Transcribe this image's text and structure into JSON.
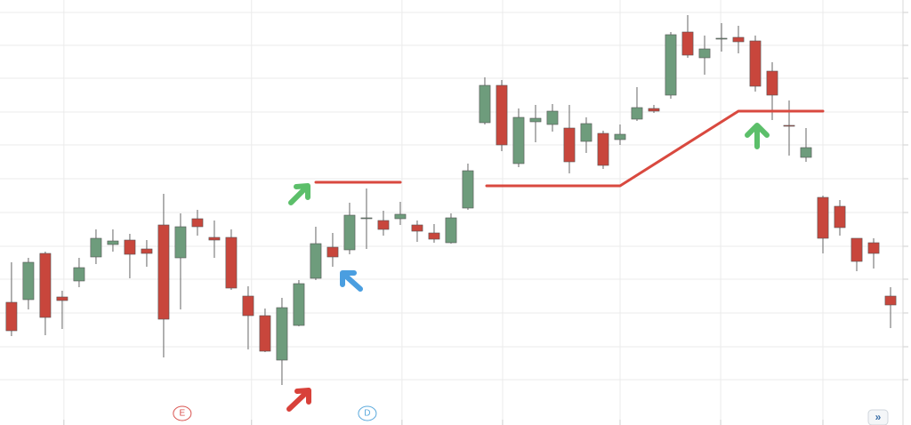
{
  "chart_data": {
    "type": "candlestick",
    "x": [
      0,
      1,
      2,
      3,
      4,
      5,
      6,
      7,
      8,
      9,
      10,
      11,
      12,
      13,
      14,
      15,
      16,
      17,
      18,
      19,
      20,
      21,
      22,
      23,
      24,
      25,
      26,
      27,
      28,
      29,
      30,
      31,
      32,
      33,
      34,
      35,
      36,
      37,
      38,
      39,
      40,
      41,
      42,
      43,
      44,
      45,
      46,
      47,
      48,
      49,
      50,
      51,
      52
    ],
    "open": [
      138,
      141,
      193,
      144,
      162,
      189,
      203,
      208,
      198,
      225,
      188,
      232,
      211,
      211,
      145,
      123,
      73,
      112,
      165,
      200,
      197,
      232,
      230,
      232,
      225,
      216,
      205,
      244,
      340,
      382,
      294,
      341,
      338,
      334,
      319,
      328,
      321,
      344,
      356,
      371,
      442,
      413,
      434,
      436,
      432,
      398,
      337,
      301,
      256,
      246,
      210,
      205,
      145
    ],
    "high": [
      183,
      188,
      195,
      151,
      188,
      220,
      220,
      215,
      208,
      260,
      238,
      242,
      230,
      220,
      156,
      131,
      143,
      163,
      223,
      216,
      250,
      266,
      241,
      251,
      230,
      226,
      238,
      294,
      391,
      388,
      356,
      360,
      361,
      360,
      346,
      331,
      338,
      380,
      360,
      442,
      461,
      438,
      452,
      449,
      438,
      408,
      365,
      334,
      258,
      253,
      210,
      210,
      155
    ],
    "low": [
      100,
      130,
      101,
      108,
      155,
      181,
      195,
      165,
      178,
      76,
      130,
      213,
      188,
      152,
      85,
      82,
      45,
      111,
      163,
      178,
      192,
      198,
      213,
      225,
      206,
      205,
      204,
      242,
      338,
      308,
      290,
      318,
      330,
      283,
      306,
      288,
      315,
      342,
      351,
      367,
      413,
      394,
      420,
      418,
      375,
      343,
      303,
      296,
      193,
      213,
      173,
      176,
      109
    ],
    "close": [
      106,
      183,
      121,
      140,
      177,
      210,
      207,
      192,
      193,
      119,
      223,
      223,
      208,
      154,
      123,
      83,
      132,
      159,
      204,
      189,
      236,
      233,
      220,
      237,
      218,
      209,
      233,
      286,
      382,
      315,
      346,
      345,
      353,
      296,
      339,
      292,
      327,
      357,
      353,
      439,
      416,
      423,
      435,
      431,
      381,
      371,
      336,
      312,
      210,
      222,
      184,
      193,
      135
    ],
    "up_color": "#6e9c7c",
    "down_color": "#c8463c",
    "xlim": [
      -0.68,
      53.21
    ],
    "ylim": [
      0,
      478
    ],
    "xticks": [
      3.1,
      14.2,
      23.1,
      29.05,
      36,
      41.95,
      48
    ],
    "yticks": [
      51,
      88,
      126,
      164,
      201,
      239,
      277,
      315,
      352,
      390,
      427,
      464
    ],
    "grid": true,
    "events": [
      {
        "x": 10.1,
        "label": "E",
        "color": "#d9534f"
      },
      {
        "x": 21.05,
        "label": "D",
        "color": "#5aa9dc"
      }
    ],
    "nav_button": "»"
  }
}
